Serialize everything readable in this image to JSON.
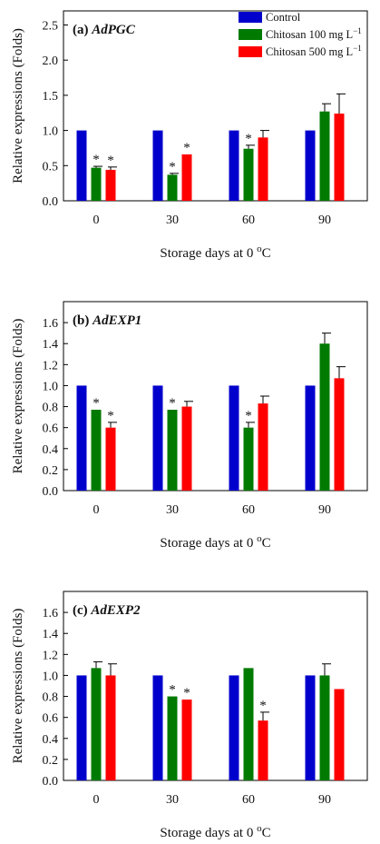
{
  "colors": {
    "control": "#0000cc",
    "chitosan100": "#007a00",
    "chitosan500": "#ff0000",
    "axis": "#000000"
  },
  "legend": {
    "items": [
      {
        "series": "control",
        "label": "Control",
        "unit_base": "",
        "unit_sup": ""
      },
      {
        "series": "chitosan100",
        "label": "Chitosan 100 mg L",
        "unit_base": "",
        "unit_sup": "−1"
      },
      {
        "series": "chitosan500",
        "label": "Chitosan 500 mg L",
        "unit_base": "",
        "unit_sup": "−1"
      }
    ],
    "placement": "top-right of panel (a)"
  },
  "chart_data": [
    {
      "type": "bar",
      "panel_label": "(a) ",
      "gene": "AdPGC",
      "xlabel": "Storage days at 0 °C",
      "xlabel_main": "Storage days at 0 ",
      "xlabel_sup": "o",
      "xlabel_end": "C",
      "ylabel": "Relative expressions (Folds)",
      "categories": [
        "0",
        "30",
        "60",
        "90"
      ],
      "ylim": [
        0,
        2.7
      ],
      "yticks": [
        "0.0",
        "0.5",
        "1.0",
        "1.5",
        "2.0",
        "2.5"
      ],
      "grid": false,
      "series": [
        {
          "name": "Control",
          "key": "control",
          "values": [
            1.0,
            1.0,
            1.0,
            1.0
          ],
          "errors": [
            0,
            0,
            0,
            0
          ],
          "sig": [
            false,
            false,
            false,
            false
          ]
        },
        {
          "name": "Chitosan 100 mg L−1",
          "key": "chitosan100",
          "values": [
            0.47,
            0.37,
            0.74,
            1.27
          ],
          "errors": [
            0.02,
            0.02,
            0.05,
            0.11
          ],
          "sig": [
            true,
            true,
            true,
            false
          ]
        },
        {
          "name": "Chitosan 500 mg L−1",
          "key": "chitosan500",
          "values": [
            0.44,
            0.66,
            0.9,
            1.24
          ],
          "errors": [
            0.04,
            0.0,
            0.1,
            0.28
          ],
          "sig": [
            true,
            true,
            false,
            false
          ]
        }
      ]
    },
    {
      "type": "bar",
      "panel_label": "(b) ",
      "gene": "AdEXP1",
      "xlabel": "Storage days at 0 °C",
      "xlabel_main": "Storage days at 0 ",
      "xlabel_sup": "o",
      "xlabel_end": "C",
      "ylabel": "Relative expressions (Folds)",
      "categories": [
        "0",
        "30",
        "60",
        "90"
      ],
      "ylim": [
        0,
        1.8
      ],
      "yticks": [
        "0.0",
        "0.2",
        "0.4",
        "0.6",
        "0.8",
        "1.0",
        "1.2",
        "1.4",
        "1.6"
      ],
      "grid": false,
      "series": [
        {
          "name": "Control",
          "key": "control",
          "values": [
            1.0,
            1.0,
            1.0,
            1.0
          ],
          "errors": [
            0,
            0,
            0,
            0
          ],
          "sig": [
            false,
            false,
            false,
            false
          ]
        },
        {
          "name": "Chitosan 100 mg L−1",
          "key": "chitosan100",
          "values": [
            0.77,
            0.77,
            0.6,
            1.4
          ],
          "errors": [
            0.0,
            0.0,
            0.05,
            0.1
          ],
          "sig": [
            true,
            true,
            true,
            false
          ]
        },
        {
          "name": "Chitosan 500 mg L−1",
          "key": "chitosan500",
          "values": [
            0.6,
            0.8,
            0.83,
            1.07
          ],
          "errors": [
            0.05,
            0.05,
            0.07,
            0.11
          ],
          "sig": [
            true,
            false,
            false,
            false
          ]
        }
      ]
    },
    {
      "type": "bar",
      "panel_label": "(c) ",
      "gene": "AdEXP2",
      "xlabel": "Storage days at 0 °C",
      "xlabel_main": "Storage days at 0 ",
      "xlabel_sup": "o",
      "xlabel_end": "C",
      "ylabel": "Relative expressions (Folds)",
      "categories": [
        "0",
        "30",
        "60",
        "90"
      ],
      "ylim": [
        0,
        1.8
      ],
      "yticks": [
        "0.0",
        "0.2",
        "0.4",
        "0.6",
        "0.8",
        "1.0",
        "1.2",
        "1.4",
        "1.6"
      ],
      "grid": false,
      "series": [
        {
          "name": "Control",
          "key": "control",
          "values": [
            1.0,
            1.0,
            1.0,
            1.0
          ],
          "errors": [
            0,
            0,
            0,
            0
          ],
          "sig": [
            false,
            false,
            false,
            false
          ]
        },
        {
          "name": "Chitosan 100 mg L−1",
          "key": "chitosan100",
          "values": [
            1.07,
            0.8,
            1.07,
            1.0
          ],
          "errors": [
            0.06,
            0.0,
            0.0,
            0.11
          ],
          "sig": [
            false,
            true,
            false,
            false
          ]
        },
        {
          "name": "Chitosan 500 mg L−1",
          "key": "chitosan500",
          "values": [
            1.0,
            0.77,
            0.57,
            0.87
          ],
          "errors": [
            0.11,
            0.0,
            0.08,
            0.0
          ],
          "sig": [
            false,
            true,
            true,
            false
          ]
        }
      ]
    }
  ]
}
